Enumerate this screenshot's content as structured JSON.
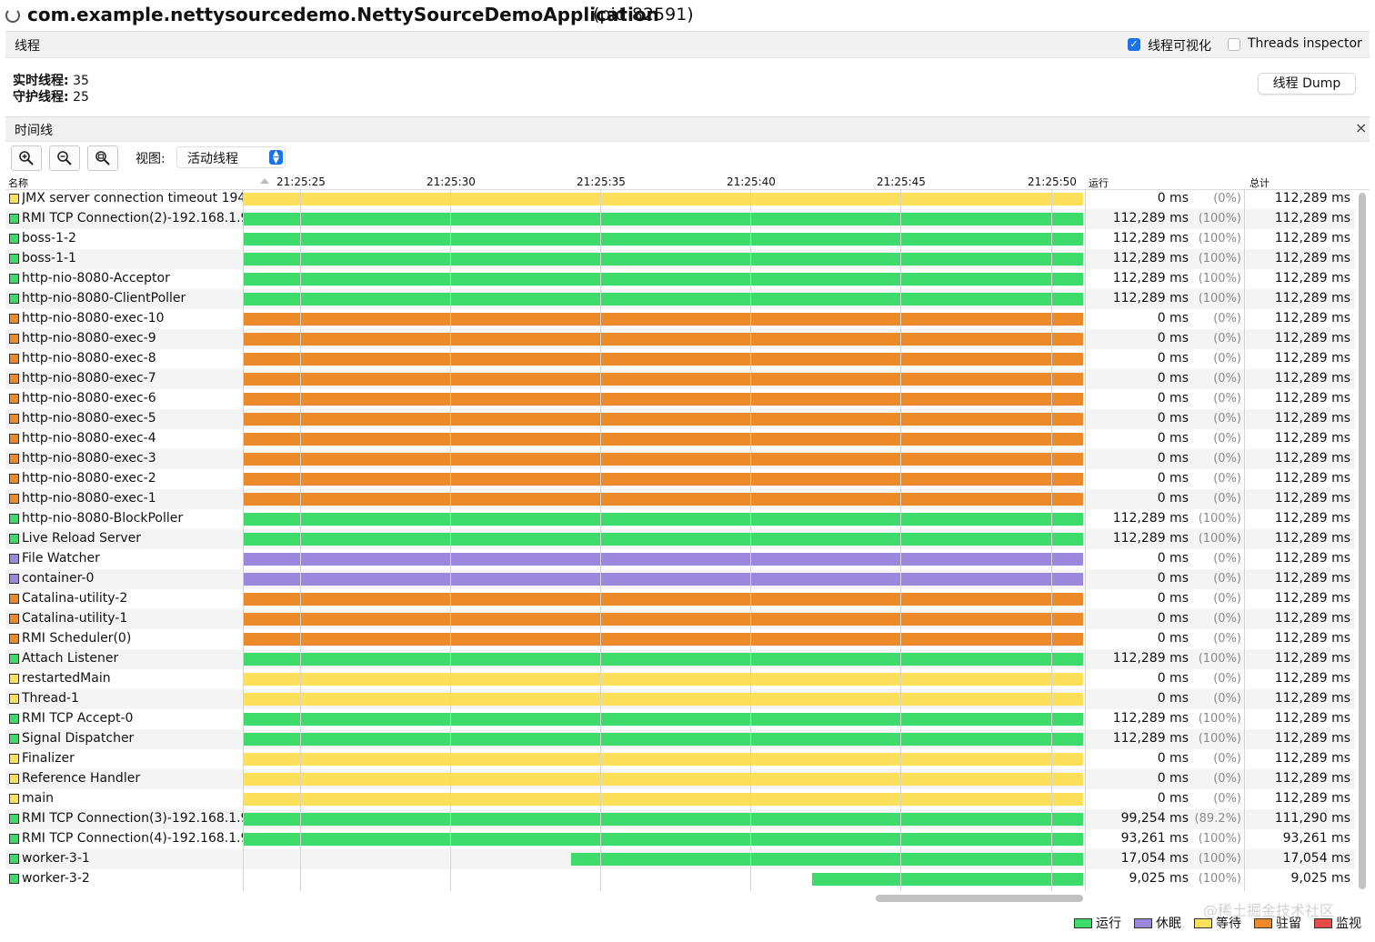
{
  "window": {
    "title": "com.example.nettysourcedemo.NettySourceDemoApplication",
    "pid": "(pid 82591)"
  },
  "threads_panel": {
    "title": "线程",
    "visualize_label": "线程可视化",
    "visualize_checked": true,
    "inspector_label": "Threads inspector",
    "inspector_checked": false,
    "live_label": "实时线程:",
    "live_value": "35",
    "daemon_label": "守护线程:",
    "daemon_value": "25",
    "dump_button": "线程 Dump"
  },
  "timeline_panel": {
    "title": "时间线",
    "close_glyph": "×",
    "view_label": "视图:",
    "view_value": "活动线程",
    "zoom_in_icon": "zoom-in-icon",
    "zoom_out_icon": "zoom-out-icon",
    "zoom_fit_icon": "zoom-fit-icon"
  },
  "table": {
    "col_name": "名称",
    "col_running": "运行",
    "col_total": "总计",
    "ticks": [
      "21:25:25",
      "21:25:30",
      "21:25:35",
      "21:25:40",
      "21:25:45",
      "21:25:50"
    ]
  },
  "state_colors": {
    "running": "#3ddc6a",
    "sleeping": "#9b88dd",
    "waiting": "#fde05a",
    "parked": "#ec8a2a",
    "monitor": "#e84a4a"
  },
  "threads": [
    {
      "name": "JMX server connection timeout 194",
      "state": "waiting",
      "start": 0,
      "running": "0 ms",
      "pct": "(0%)",
      "total": "112,289 ms"
    },
    {
      "name": "RMI TCP Connection(2)-192.168.1.9",
      "state": "running",
      "start": 0,
      "running": "112,289 ms",
      "pct": "(100%)",
      "total": "112,289 ms"
    },
    {
      "name": "boss-1-2",
      "state": "running",
      "start": 0,
      "running": "112,289 ms",
      "pct": "(100%)",
      "total": "112,289 ms"
    },
    {
      "name": "boss-1-1",
      "state": "running",
      "start": 0,
      "running": "112,289 ms",
      "pct": "(100%)",
      "total": "112,289 ms"
    },
    {
      "name": "http-nio-8080-Acceptor",
      "state": "running",
      "start": 0,
      "running": "112,289 ms",
      "pct": "(100%)",
      "total": "112,289 ms"
    },
    {
      "name": "http-nio-8080-ClientPoller",
      "state": "running",
      "start": 0,
      "running": "112,289 ms",
      "pct": "(100%)",
      "total": "112,289 ms"
    },
    {
      "name": "http-nio-8080-exec-10",
      "state": "parked",
      "start": 0,
      "running": "0 ms",
      "pct": "(0%)",
      "total": "112,289 ms"
    },
    {
      "name": "http-nio-8080-exec-9",
      "state": "parked",
      "start": 0,
      "running": "0 ms",
      "pct": "(0%)",
      "total": "112,289 ms"
    },
    {
      "name": "http-nio-8080-exec-8",
      "state": "parked",
      "start": 0,
      "running": "0 ms",
      "pct": "(0%)",
      "total": "112,289 ms"
    },
    {
      "name": "http-nio-8080-exec-7",
      "state": "parked",
      "start": 0,
      "running": "0 ms",
      "pct": "(0%)",
      "total": "112,289 ms"
    },
    {
      "name": "http-nio-8080-exec-6",
      "state": "parked",
      "start": 0,
      "running": "0 ms",
      "pct": "(0%)",
      "total": "112,289 ms"
    },
    {
      "name": "http-nio-8080-exec-5",
      "state": "parked",
      "start": 0,
      "running": "0 ms",
      "pct": "(0%)",
      "total": "112,289 ms"
    },
    {
      "name": "http-nio-8080-exec-4",
      "state": "parked",
      "start": 0,
      "running": "0 ms",
      "pct": "(0%)",
      "total": "112,289 ms"
    },
    {
      "name": "http-nio-8080-exec-3",
      "state": "parked",
      "start": 0,
      "running": "0 ms",
      "pct": "(0%)",
      "total": "112,289 ms"
    },
    {
      "name": "http-nio-8080-exec-2",
      "state": "parked",
      "start": 0,
      "running": "0 ms",
      "pct": "(0%)",
      "total": "112,289 ms"
    },
    {
      "name": "http-nio-8080-exec-1",
      "state": "parked",
      "start": 0,
      "running": "0 ms",
      "pct": "(0%)",
      "total": "112,289 ms"
    },
    {
      "name": "http-nio-8080-BlockPoller",
      "state": "running",
      "start": 0,
      "running": "112,289 ms",
      "pct": "(100%)",
      "total": "112,289 ms"
    },
    {
      "name": "Live Reload Server",
      "state": "running",
      "start": 0,
      "running": "112,289 ms",
      "pct": "(100%)",
      "total": "112,289 ms"
    },
    {
      "name": "File Watcher",
      "state": "sleeping",
      "start": 0,
      "running": "0 ms",
      "pct": "(0%)",
      "total": "112,289 ms"
    },
    {
      "name": "container-0",
      "state": "sleeping",
      "start": 0,
      "running": "0 ms",
      "pct": "(0%)",
      "total": "112,289 ms"
    },
    {
      "name": "Catalina-utility-2",
      "state": "parked",
      "start": 0,
      "running": "0 ms",
      "pct": "(0%)",
      "total": "112,289 ms"
    },
    {
      "name": "Catalina-utility-1",
      "state": "parked",
      "start": 0,
      "running": "0 ms",
      "pct": "(0%)",
      "total": "112,289 ms"
    },
    {
      "name": "RMI Scheduler(0)",
      "state": "parked",
      "start": 0,
      "running": "0 ms",
      "pct": "(0%)",
      "total": "112,289 ms"
    },
    {
      "name": "Attach Listener",
      "state": "running",
      "start": 0,
      "running": "112,289 ms",
      "pct": "(100%)",
      "total": "112,289 ms"
    },
    {
      "name": "restartedMain",
      "state": "waiting",
      "start": 0,
      "running": "0 ms",
      "pct": "(0%)",
      "total": "112,289 ms"
    },
    {
      "name": "Thread-1",
      "state": "waiting",
      "start": 0,
      "running": "0 ms",
      "pct": "(0%)",
      "total": "112,289 ms"
    },
    {
      "name": "RMI TCP Accept-0",
      "state": "running",
      "start": 0,
      "running": "112,289 ms",
      "pct": "(100%)",
      "total": "112,289 ms"
    },
    {
      "name": "Signal Dispatcher",
      "state": "running",
      "start": 0,
      "running": "112,289 ms",
      "pct": "(100%)",
      "total": "112,289 ms"
    },
    {
      "name": "Finalizer",
      "state": "waiting",
      "start": 0,
      "running": "0 ms",
      "pct": "(0%)",
      "total": "112,289 ms"
    },
    {
      "name": "Reference Handler",
      "state": "waiting",
      "start": 0,
      "running": "0 ms",
      "pct": "(0%)",
      "total": "112,289 ms"
    },
    {
      "name": "main",
      "state": "waiting",
      "start": 0,
      "running": "0 ms",
      "pct": "(0%)",
      "total": "112,289 ms"
    },
    {
      "name": "RMI TCP Connection(3)-192.168.1.9",
      "state": "running",
      "start": 0,
      "running": "99,254 ms",
      "pct": "(89.2%)",
      "total": "111,290 ms"
    },
    {
      "name": "RMI TCP Connection(4)-192.168.1.9",
      "state": "running",
      "start": 0,
      "running": "93,261 ms",
      "pct": "(100%)",
      "total": "93,261 ms"
    },
    {
      "name": "worker-3-1",
      "state": "running",
      "start": 0.39,
      "running": "17,054 ms",
      "pct": "(100%)",
      "total": "17,054 ms"
    },
    {
      "name": "worker-3-2",
      "state": "running",
      "start": 0.677,
      "running": "9,025 ms",
      "pct": "(100%)",
      "total": "9,025 ms"
    }
  ],
  "legend": [
    {
      "state": "running",
      "label": "运行"
    },
    {
      "state": "sleeping",
      "label": "休眠"
    },
    {
      "state": "waiting",
      "label": "等待"
    },
    {
      "state": "parked",
      "label": "驻留"
    },
    {
      "state": "monitor",
      "label": "监视"
    }
  ],
  "watermark": "@稀土掘金技术社区"
}
